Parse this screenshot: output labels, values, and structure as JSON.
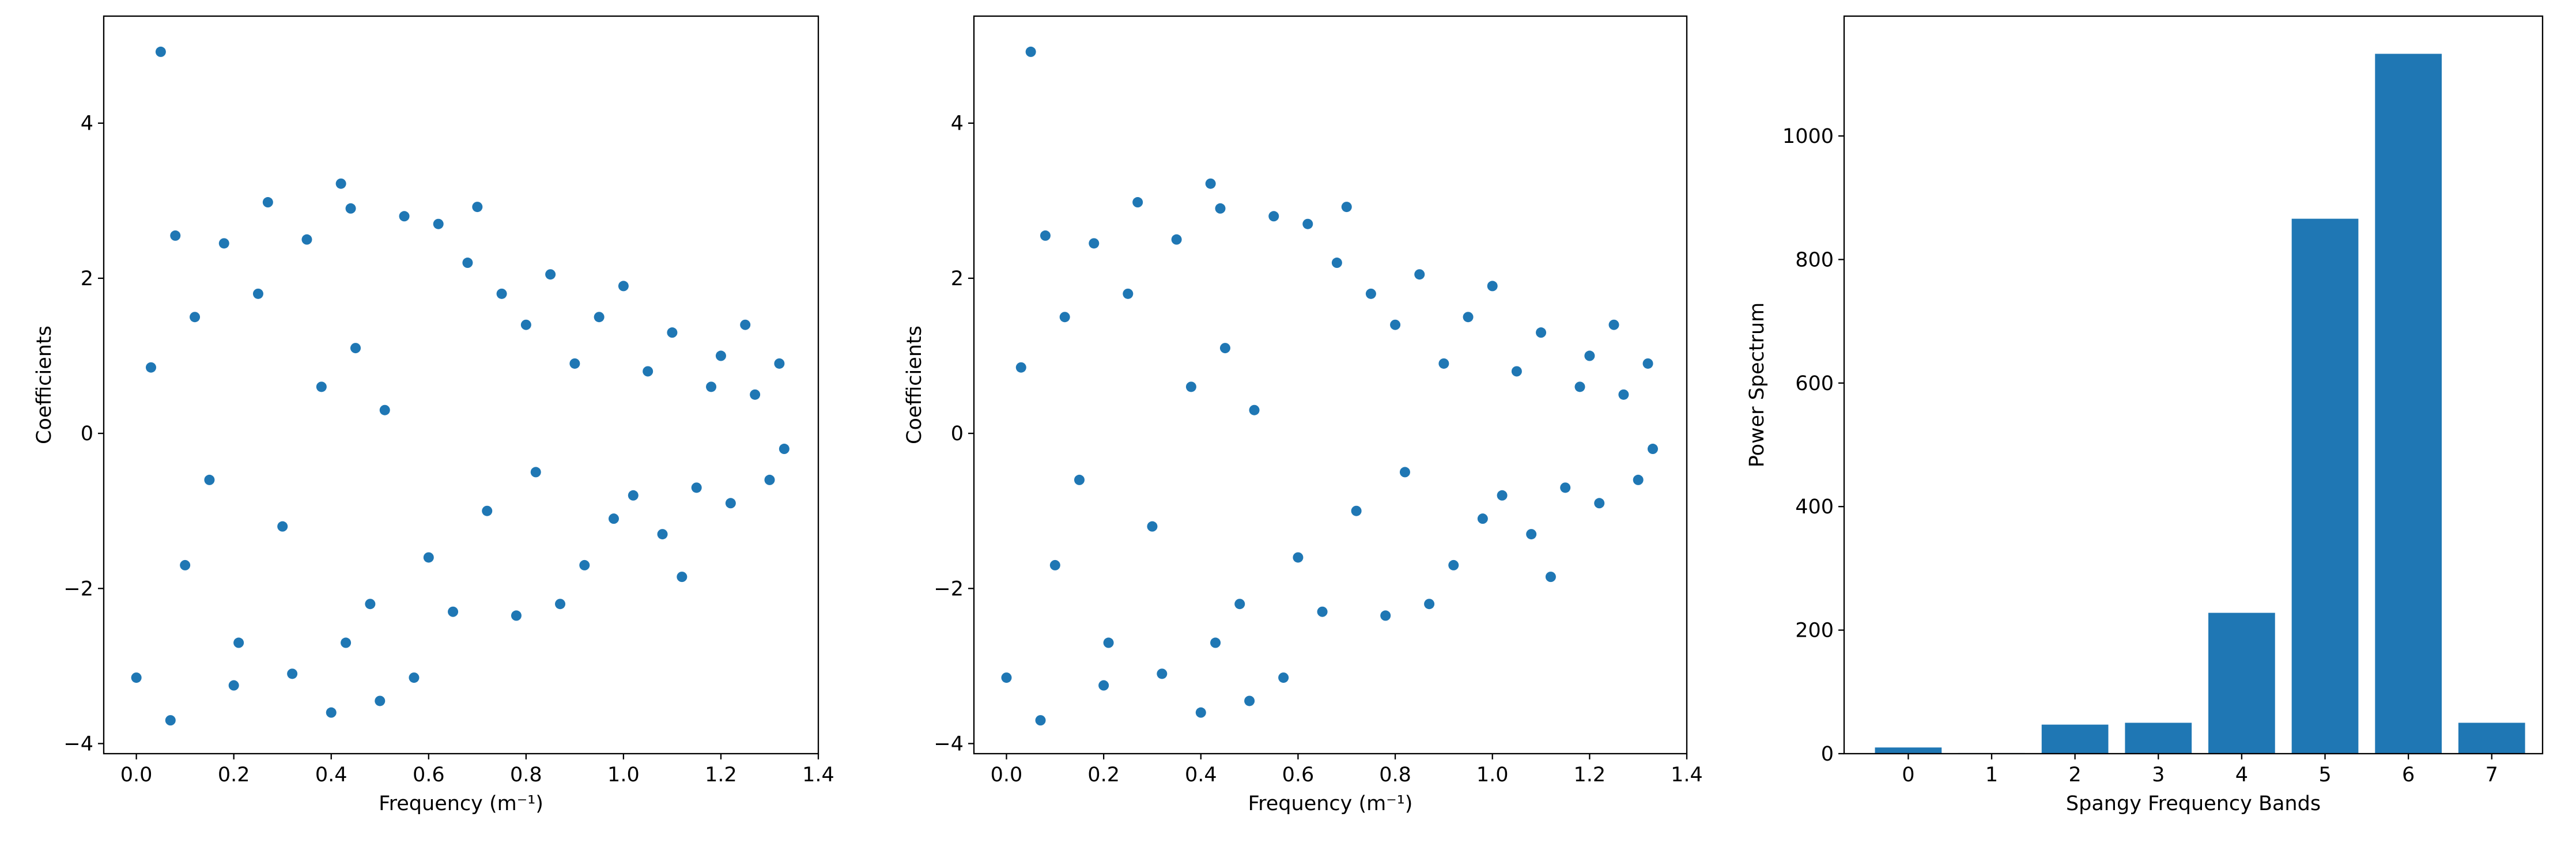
{
  "chart_data": [
    {
      "type": "scatter",
      "xlabel": "Frequency (m⁻¹)",
      "ylabel": "Coefficients",
      "color": "#1f77b4",
      "x": [
        0.0,
        0.03,
        0.05,
        0.07,
        0.08,
        0.1,
        0.12,
        0.15,
        0.18,
        0.2,
        0.21,
        0.25,
        0.27,
        0.3,
        0.32,
        0.35,
        0.38,
        0.4,
        0.42,
        0.43,
        0.44,
        0.45,
        0.48,
        0.5,
        0.51,
        0.55,
        0.57,
        0.6,
        0.62,
        0.65,
        0.68,
        0.7,
        0.72,
        0.75,
        0.78,
        0.8,
        0.82,
        0.85,
        0.87,
        0.9,
        0.92,
        0.95,
        0.98,
        1.0,
        1.02,
        1.05,
        1.08,
        1.1,
        1.12,
        1.15,
        1.18,
        1.2,
        1.22,
        1.25,
        1.27,
        1.3,
        1.32,
        1.33
      ],
      "y": [
        -3.15,
        0.85,
        4.92,
        -3.7,
        2.55,
        -1.7,
        1.5,
        -0.6,
        2.45,
        -3.25,
        -2.7,
        1.8,
        2.98,
        -1.2,
        -3.1,
        2.5,
        0.6,
        -3.6,
        3.22,
        -2.7,
        2.9,
        1.1,
        -2.2,
        -3.45,
        0.3,
        2.8,
        -3.15,
        -1.6,
        2.7,
        -2.3,
        2.2,
        2.92,
        -1.0,
        1.8,
        -2.35,
        1.4,
        -0.5,
        2.05,
        -2.2,
        0.9,
        -1.7,
        1.5,
        -1.1,
        1.9,
        -0.8,
        0.8,
        -1.3,
        1.3,
        -1.85,
        -0.7,
        0.6,
        1.0,
        -0.9,
        1.4,
        0.5,
        -0.6,
        0.9,
        -0.2
      ],
      "xlim": [
        -0.067,
        1.4
      ],
      "ylim": [
        -4.13,
        5.38
      ],
      "xticks": [
        {
          "value": 0,
          "label": "0.0"
        },
        0.2,
        0.4,
        0.6,
        0.8,
        {
          "value": 1,
          "label": "1.0"
        },
        1.2,
        1.4
      ],
      "yticks": [
        {
          "value": -4,
          "label": "−4"
        },
        {
          "value": -2,
          "label": "−2"
        },
        0,
        2,
        4
      ]
    },
    {
      "type": "scatter",
      "xlabel": "Frequency (m⁻¹)",
      "ylabel": "Coefficients",
      "color": "#1f77b4",
      "x": [
        0.0,
        0.03,
        0.05,
        0.07,
        0.08,
        0.1,
        0.12,
        0.15,
        0.18,
        0.2,
        0.21,
        0.25,
        0.27,
        0.3,
        0.32,
        0.35,
        0.38,
        0.4,
        0.42,
        0.43,
        0.44,
        0.45,
        0.48,
        0.5,
        0.51,
        0.55,
        0.57,
        0.6,
        0.62,
        0.65,
        0.68,
        0.7,
        0.72,
        0.75,
        0.78,
        0.8,
        0.82,
        0.85,
        0.87,
        0.9,
        0.92,
        0.95,
        0.98,
        1.0,
        1.02,
        1.05,
        1.08,
        1.1,
        1.12,
        1.15,
        1.18,
        1.2,
        1.22,
        1.25,
        1.27,
        1.3,
        1.32,
        1.33
      ],
      "y": [
        -3.15,
        0.85,
        4.92,
        -3.7,
        2.55,
        -1.7,
        1.5,
        -0.6,
        2.45,
        -3.25,
        -2.7,
        1.8,
        2.98,
        -1.2,
        -3.1,
        2.5,
        0.6,
        -3.6,
        3.22,
        -2.7,
        2.9,
        1.1,
        -2.2,
        -3.45,
        0.3,
        2.8,
        -3.15,
        -1.6,
        2.7,
        -2.3,
        2.2,
        2.92,
        -1.0,
        1.8,
        -2.35,
        1.4,
        -0.5,
        2.05,
        -2.2,
        0.9,
        -1.7,
        1.5,
        -1.1,
        1.9,
        -0.8,
        0.8,
        -1.3,
        1.3,
        -1.85,
        -0.7,
        0.6,
        1.0,
        -0.9,
        1.4,
        0.5,
        -0.6,
        0.9,
        -0.2
      ],
      "xlim": [
        -0.067,
        1.4
      ],
      "ylim": [
        -4.13,
        5.38
      ],
      "xticks": [
        {
          "value": 0,
          "label": "0.0"
        },
        0.2,
        0.4,
        0.6,
        0.8,
        {
          "value": 1,
          "label": "1.0"
        },
        1.2,
        1.4
      ],
      "yticks": [
        {
          "value": -4,
          "label": "−4"
        },
        {
          "value": -2,
          "label": "−2"
        },
        0,
        2,
        4
      ]
    },
    {
      "type": "bar",
      "xlabel": "Spangy Frequency Bands",
      "ylabel": "Power Spectrum",
      "color": "#1f77b4",
      "x": [
        0,
        1,
        2,
        3,
        4,
        5,
        6,
        7
      ],
      "values": [
        10,
        1,
        47,
        50,
        228,
        866,
        1133,
        50
      ],
      "bar_width": 0.8,
      "xlim": [
        -0.77,
        7.61
      ],
      "ylim": [
        0,
        1194
      ],
      "xticks": [
        0,
        1,
        2,
        3,
        4,
        5,
        6,
        7
      ],
      "yticks": [
        0,
        200,
        400,
        600,
        800,
        1000
      ]
    }
  ]
}
